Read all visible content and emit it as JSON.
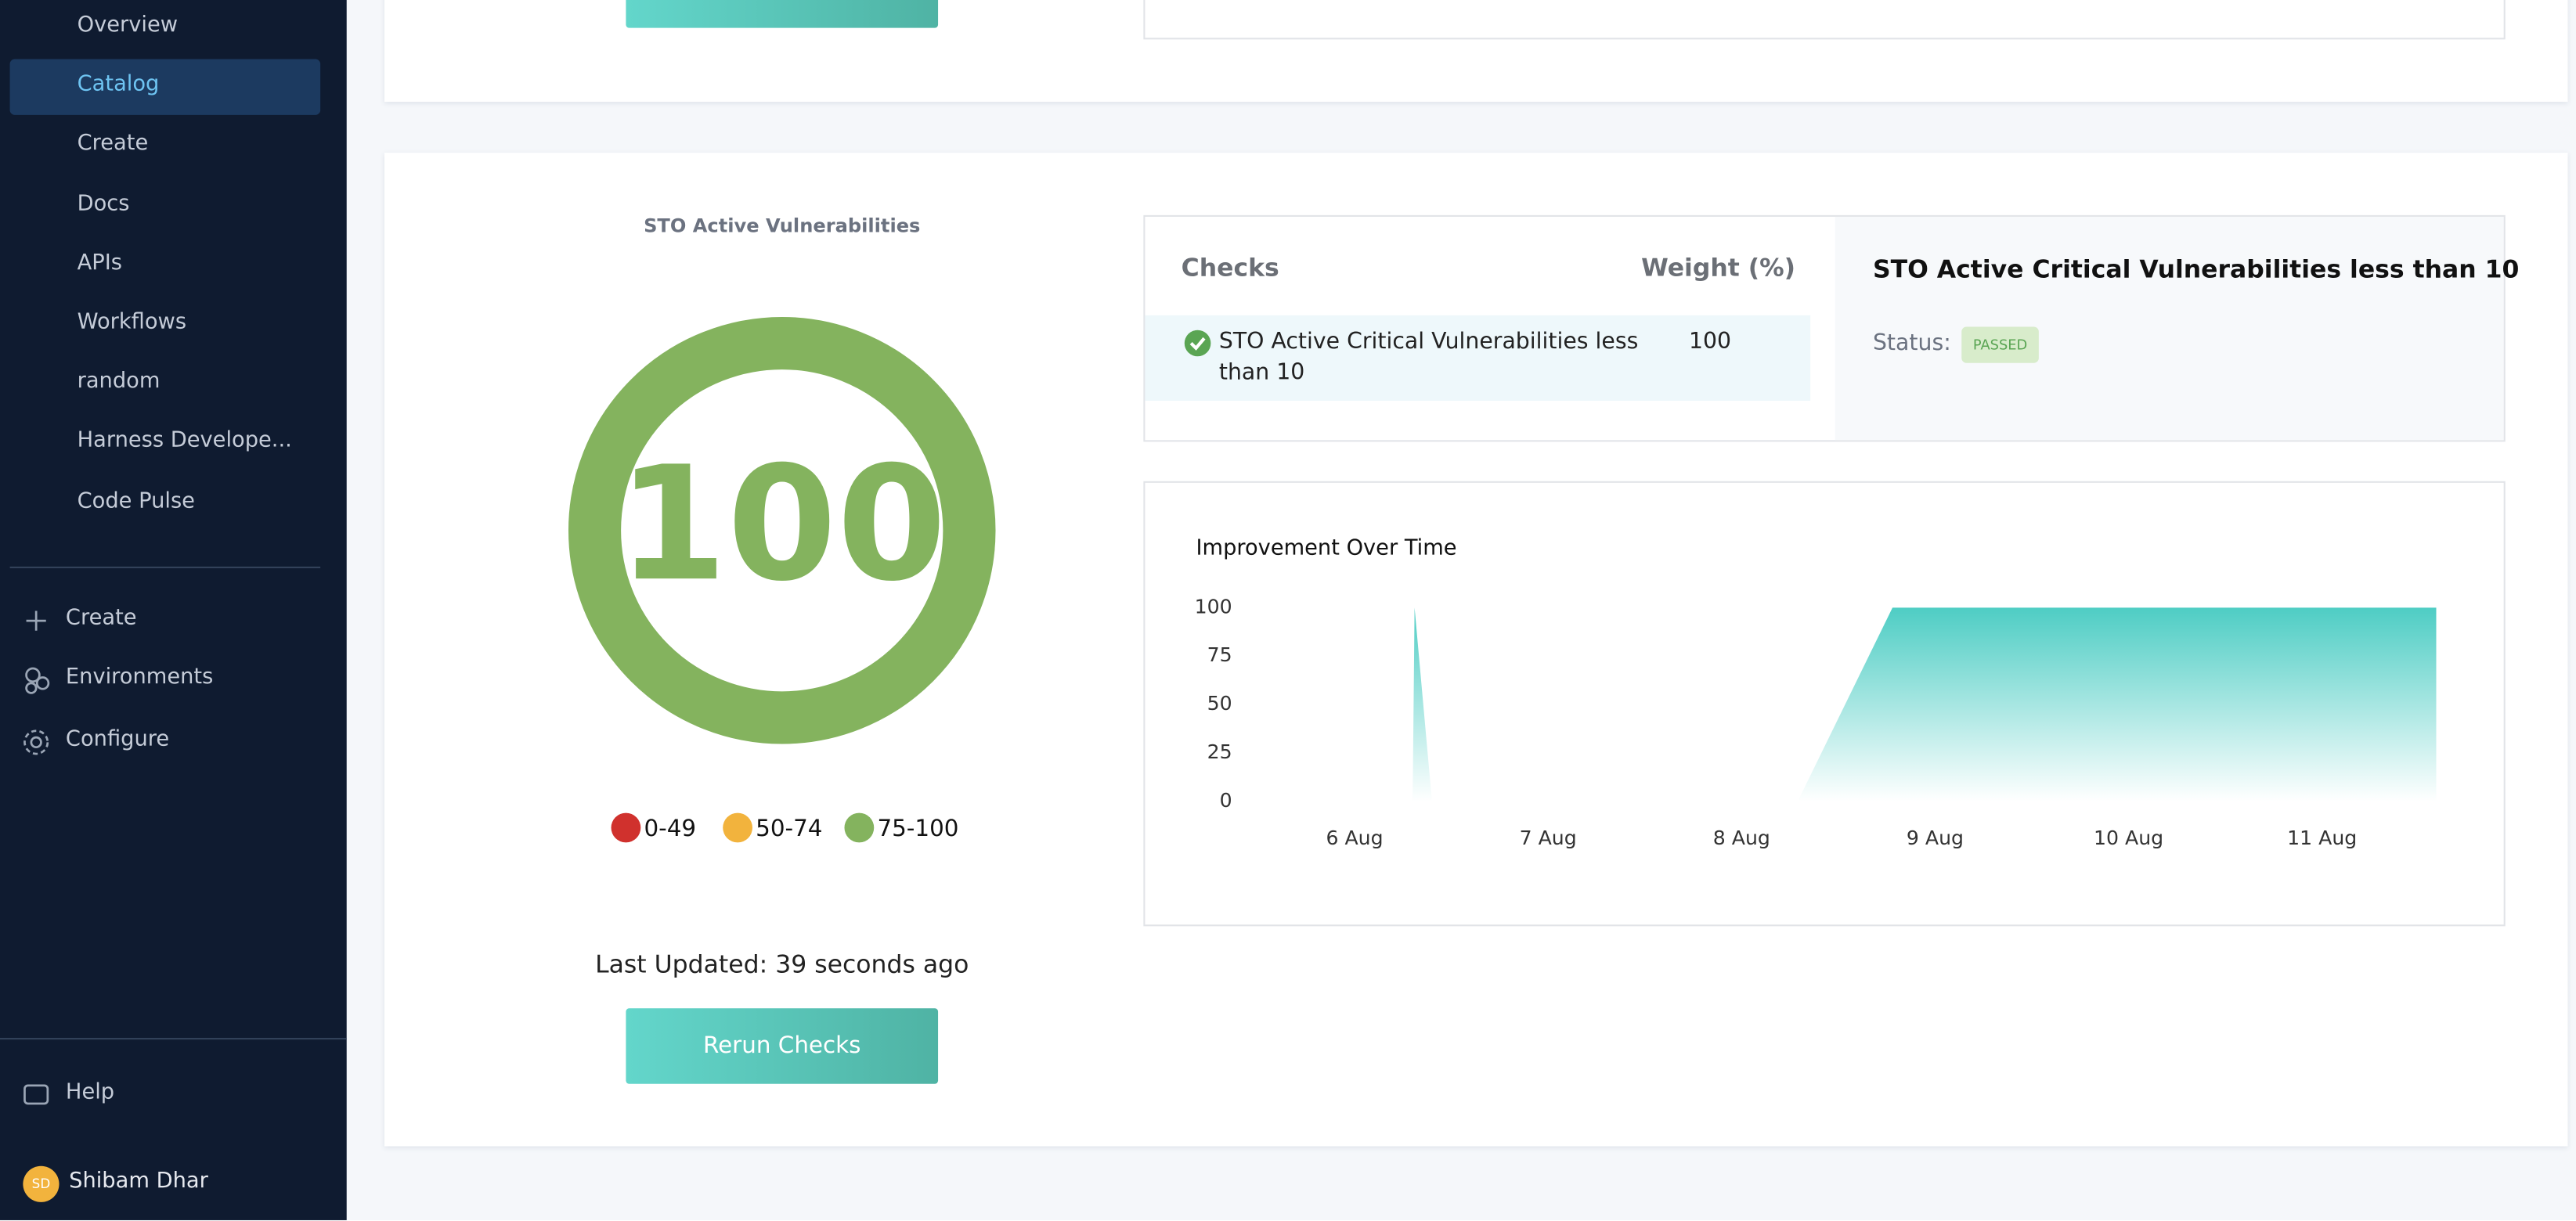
{
  "sidebar": {
    "nav": [
      "Overview",
      "Catalog",
      "Create",
      "Docs",
      "APIs",
      "Workflows",
      "random",
      "Harness Develope...",
      "Code Pulse"
    ],
    "active": 1,
    "actions": [
      "Create",
      "Environments",
      "Configure"
    ],
    "help": "Help",
    "user": {
      "initials": "SD",
      "name": "Shibam Dhar"
    }
  },
  "score_card": {
    "title": "STO Active Vulnerabilities",
    "score": 100,
    "legend": [
      {
        "label": "0-49",
        "color": "#d0312d"
      },
      {
        "label": "50-74",
        "color": "#f2b33d"
      },
      {
        "label": "75-100",
        "color": "#84b35e"
      }
    ],
    "last_updated": "Last Updated: 39 seconds ago",
    "button": "Rerun Checks"
  },
  "checks": {
    "header": [
      "Checks",
      "Weight (%)"
    ],
    "rows": [
      [
        "STO Active Critical Vulnerabilities less than 10",
        "100"
      ]
    ],
    "detail": {
      "title": "STO Active Critical Vulnerabilities less than 10",
      "status_label": "Status:",
      "status": "PASSED"
    }
  },
  "chart_data": {
    "type": "area",
    "title": "Improvement Over Time",
    "x": [
      6.3,
      6.31,
      6.4,
      8.29,
      8.78,
      11.59
    ],
    "values": [
      0,
      100,
      0,
      0,
      100,
      100
    ],
    "color": "#4ecdc4",
    "xlim": [
      5.52,
      11.65
    ],
    "xticks": [
      {
        "value": 6,
        "label": "6 Aug"
      },
      {
        "value": 7,
        "label": "7 Aug"
      },
      {
        "value": 8,
        "label": "8 Aug"
      },
      {
        "value": 9,
        "label": "9 Aug"
      },
      {
        "value": 10,
        "label": "10 Aug"
      },
      {
        "value": 11,
        "label": "11 Aug"
      }
    ],
    "ylim": [
      0,
      100
    ],
    "yticks": [
      0,
      25,
      50,
      75,
      100
    ]
  }
}
